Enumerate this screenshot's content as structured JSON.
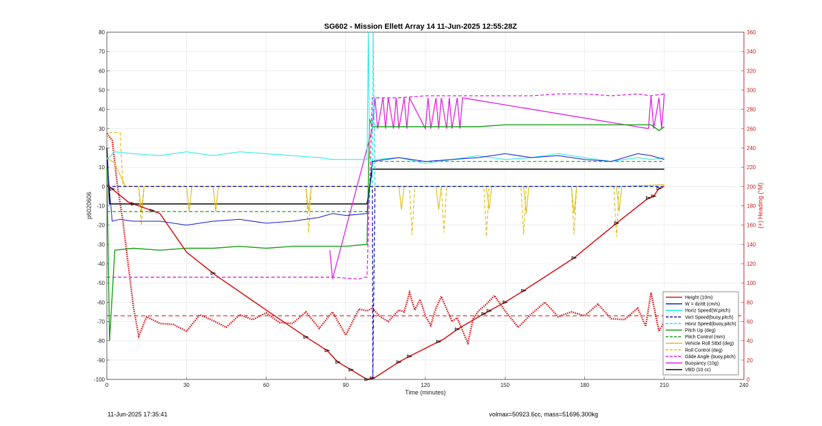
{
  "chart_data": {
    "type": "line",
    "title": "SG602 - Mission Ellett Array 14 11-Jun-2025 12:55:28Z",
    "xlabel": "Time (minutes)",
    "ylabel_left": "p6020606",
    "ylabel_right": "(+) Heading (°M)",
    "xlim": [
      0,
      240
    ],
    "ylim_left": [
      -100,
      80
    ],
    "ylim_right": [
      0,
      360
    ],
    "x_ticks": [
      0,
      30,
      60,
      90,
      120,
      150,
      180,
      210,
      240
    ],
    "y_ticks_left": [
      80,
      70,
      60,
      50,
      40,
      30,
      20,
      10,
      0,
      -10,
      -20,
      -30,
      -40,
      -50,
      -60,
      -70,
      -80,
      -90,
      -100
    ],
    "y_ticks_right": [
      360,
      340,
      320,
      300,
      280,
      260,
      240,
      220,
      200,
      180,
      160,
      140,
      120,
      100,
      80,
      60,
      40,
      20,
      0
    ],
    "grid": true,
    "legend_position": "bottom-right",
    "colors": {
      "red": "#d7191c",
      "blue": "#1515c8",
      "cyan": "#19e6e6",
      "green": "#18a018",
      "yellow": "#e0c020",
      "magenta": "#e01ee0",
      "black": "#000000"
    },
    "series": [
      {
        "name": "Height (10m)",
        "color": "#d7191c",
        "style": "solid",
        "width": 1.6,
        "x": [
          0,
          8,
          20,
          30,
          41,
          60,
          75,
          83,
          87,
          92,
          98,
          101,
          110,
          114,
          127,
          132,
          142,
          150,
          157,
          176,
          192,
          204,
          206,
          208,
          210
        ],
        "y": [
          1,
          -8,
          -14,
          -34,
          -46,
          -64,
          -78,
          -85,
          -91,
          -95,
          -100,
          -99,
          -91,
          -88,
          -79,
          -74,
          -66,
          -60,
          -54,
          -37,
          -19,
          -6,
          -5,
          -1,
          0
        ]
      },
      {
        "name": "W = dz/dt (cm/s)",
        "color": "#1515c8",
        "style": "solid",
        "width": 1,
        "x": [
          0,
          2,
          5,
          10,
          20,
          30,
          40,
          50,
          60,
          70,
          80,
          85,
          90,
          98,
          100,
          110,
          120,
          130,
          140,
          150,
          160,
          170,
          180,
          190,
          200,
          205,
          210
        ],
        "y": [
          14,
          -18,
          -17,
          -18,
          -18,
          -20,
          -18,
          -17,
          -19,
          -18,
          -16,
          -14,
          -15,
          -14,
          13,
          15,
          13,
          14,
          15,
          17,
          15,
          16,
          14,
          13,
          17,
          16,
          14
        ]
      },
      {
        "name": "Horiz Speed(W,pitch)",
        "color": "#19e6e6",
        "style": "solid",
        "width": 1,
        "x": [
          0,
          3,
          10,
          20,
          30,
          40,
          50,
          60,
          70,
          80,
          85,
          90,
          98,
          98.5,
          99,
          100,
          101,
          110,
          120,
          130,
          140,
          150,
          160,
          170,
          180,
          190,
          200,
          205,
          210
        ],
        "y": [
          14,
          18,
          17,
          16,
          18,
          16,
          18,
          17,
          16,
          15,
          14,
          14,
          14,
          80,
          15,
          12,
          14,
          15,
          12,
          14,
          16,
          14,
          15,
          17,
          15,
          13,
          15,
          14,
          15
        ]
      },
      {
        "name": "Vert Speed(buoy,pitch)",
        "color": "#1515c8",
        "style": "dashed",
        "width": 1.3,
        "x": [
          0,
          1,
          100,
          100.2,
          101,
          210
        ],
        "y": [
          0,
          0,
          0,
          -100,
          0,
          0
        ]
      },
      {
        "name": "Horiz Speed(buoy,pitch)",
        "color": "#19e6e6",
        "style": "dashed",
        "width": 1.3,
        "x": [
          0,
          1,
          100,
          100.3,
          101,
          210
        ],
        "y": [
          0,
          0,
          0,
          80,
          0,
          0
        ]
      },
      {
        "name": "Pitch Up (deg)",
        "color": "#18a018",
        "style": "solid",
        "width": 1.4,
        "x": [
          0,
          1,
          3,
          10,
          20,
          30,
          40,
          50,
          60,
          70,
          80,
          90,
          98,
          99,
          100,
          110,
          120,
          130,
          140,
          150,
          160,
          170,
          180,
          190,
          200,
          205,
          208,
          210
        ],
        "y": [
          10,
          -80,
          -33,
          -32,
          -33,
          -32,
          -32,
          -31,
          -32,
          -31,
          -31,
          -31,
          -30,
          35,
          31,
          31,
          31,
          31,
          31,
          32,
          32,
          32,
          32,
          32,
          32,
          32,
          29,
          31
        ]
      },
      {
        "name": "Pitch Control (mm)",
        "color": "#18a018",
        "style": "dashed",
        "width": 1.2,
        "x": [
          0,
          2,
          98,
          100,
          210
        ],
        "y": [
          -13,
          -13,
          -13,
          13,
          13
        ]
      },
      {
        "name": "Vehicle Roll Stbd (deg)",
        "color": "#e0c020",
        "style": "solid",
        "width": 1.2,
        "x": [
          0,
          3,
          7,
          12,
          13,
          14,
          30,
          31,
          32,
          40,
          41,
          42,
          75,
          76,
          77,
          98,
          100,
          110,
          111,
          112,
          124,
          125,
          126,
          143,
          144,
          145,
          157,
          158,
          159,
          175,
          176,
          177,
          192,
          193,
          194,
          210
        ],
        "y": [
          15,
          12,
          0,
          0,
          -13,
          0,
          0,
          -13,
          0,
          0,
          -13,
          0,
          0,
          -13,
          0,
          0,
          0,
          0,
          -12,
          0,
          0,
          -12,
          0,
          0,
          -12,
          0,
          0,
          -14,
          0,
          0,
          -14,
          0,
          0,
          -13,
          0,
          1
        ]
      },
      {
        "name": "Roll Control (deg)",
        "color": "#e0c020",
        "style": "dashed",
        "width": 1.2,
        "x": [
          0,
          1,
          5,
          6,
          12,
          13,
          14,
          75,
          76,
          77,
          98,
          100,
          114,
          115,
          116,
          126,
          127,
          128,
          142,
          143,
          144,
          156,
          157,
          158,
          175,
          176,
          177,
          191,
          192,
          193,
          210
        ],
        "y": [
          25,
          28,
          28,
          0,
          0,
          -20,
          0,
          0,
          -24,
          0,
          0,
          0,
          0,
          -25,
          0,
          0,
          -24,
          0,
          0,
          -26,
          0,
          0,
          -25,
          0,
          0,
          -25,
          0,
          0,
          -26,
          0,
          0
        ]
      },
      {
        "name": "Glide Angle (buoy,pitch)",
        "color": "#e01ee0",
        "style": "dashed",
        "width": 1.3,
        "x": [
          0,
          5,
          20,
          40,
          60,
          80,
          85,
          95,
          97,
          98,
          100,
          102,
          110,
          120,
          140,
          160,
          170,
          180,
          190,
          200,
          205,
          210
        ],
        "y": [
          -47,
          -47,
          -47,
          -47,
          -47,
          -47,
          -47,
          -48,
          -47,
          -47,
          46,
          46,
          46,
          47,
          47,
          47,
          48,
          48,
          47,
          48,
          47,
          48
        ]
      },
      {
        "name": "Buoyancy (10g)",
        "color": "#e01ee0",
        "style": "solid",
        "width": 1.3,
        "x": [
          84,
          85,
          100,
          101,
          102,
          104,
          105,
          106,
          108,
          109,
          110,
          112,
          113,
          114,
          120,
          121,
          122,
          124,
          125,
          126,
          128,
          129,
          130,
          132,
          133,
          134,
          204,
          205,
          206,
          208,
          209,
          210
        ],
        "y": [
          -33,
          -48,
          30,
          46,
          30,
          46,
          30,
          46,
          30,
          46,
          30,
          46,
          30,
          46,
          30,
          46,
          30,
          46,
          30,
          46,
          30,
          46,
          30,
          46,
          30,
          46,
          30,
          47,
          30,
          46,
          30,
          48
        ]
      },
      {
        "name": "VBD (10 cc)",
        "color": "#000000",
        "style": "solid",
        "width": 1.5,
        "x": [
          0,
          1,
          98,
          100,
          210
        ],
        "y": [
          20,
          -9,
          -9,
          9,
          9
        ]
      }
    ],
    "heading_series": {
      "name": "(+) Heading (°M)",
      "color": "#d7191c",
      "style": "dotted",
      "axis": "right",
      "x": [
        0,
        2,
        4,
        6,
        8,
        10,
        12,
        15,
        20,
        25,
        30,
        35,
        40,
        45,
        50,
        55,
        60,
        65,
        70,
        75,
        80,
        85,
        90,
        95,
        98,
        100,
        103,
        106,
        110,
        112,
        114,
        116,
        118,
        120,
        122,
        124,
        126,
        130,
        132,
        135,
        136,
        138,
        140,
        143,
        146,
        150,
        155,
        160,
        165,
        170,
        175,
        180,
        185,
        190,
        195,
        200,
        203,
        205,
        208,
        210
      ],
      "y": [
        255,
        248,
        200,
        165,
        120,
        75,
        45,
        65,
        58,
        57,
        50,
        67,
        61,
        54,
        67,
        62,
        69,
        59,
        58,
        70,
        53,
        70,
        46,
        73,
        71,
        74,
        65,
        60,
        72,
        70,
        90,
        72,
        83,
        66,
        56,
        74,
        86,
        60,
        64,
        44,
        38,
        63,
        71,
        78,
        87,
        71,
        54,
        68,
        80,
        65,
        70,
        66,
        78,
        63,
        62,
        74,
        55,
        90,
        50,
        60
      ]
    },
    "heading_mean": {
      "value": 66,
      "color": "#d7191c",
      "style": "dashed"
    },
    "legend_entries": [
      {
        "label": "Height (10m)",
        "color": "#d7191c",
        "style": "solid"
      },
      {
        "label": "W = dz/dt (cm/s)",
        "color": "#1515c8",
        "style": "solid"
      },
      {
        "label": "Horiz Speed(W,pitch)",
        "color": "#19e6e6",
        "style": "solid"
      },
      {
        "label": "Vert Speed(buoy,pitch)",
        "color": "#1515c8",
        "style": "dashed"
      },
      {
        "label": "Horiz Speed(buoy,pitch)",
        "color": "#19e6e6",
        "style": "dashed"
      },
      {
        "label": "Pitch Up (deg)",
        "color": "#18a018",
        "style": "solid"
      },
      {
        "label": "Pitch Control (mm)",
        "color": "#18a018",
        "style": "dashed"
      },
      {
        "label": "Vehicle Roll Stbd (deg)",
        "color": "#e0c020",
        "style": "solid"
      },
      {
        "label": "Roll Control (deg)",
        "color": "#e0c020",
        "style": "dashed"
      },
      {
        "label": "Glide Angle (buoy,pitch)",
        "color": "#e01ee0",
        "style": "dashed"
      },
      {
        "label": "Buoyancy (10g)",
        "color": "#e01ee0",
        "style": "solid"
      },
      {
        "label": "VBD (10 cc)",
        "color": "#000000",
        "style": "solid"
      }
    ],
    "height_markers_x": [
      2,
      10,
      17,
      40,
      75,
      83,
      87,
      92,
      98,
      100,
      110,
      114,
      125,
      132,
      142,
      144,
      150,
      157,
      176,
      192,
      204,
      206,
      208
    ]
  },
  "footer": {
    "timestamp": "11-Jun-2025 17:35:41",
    "info": "volmax=50923.6cc, mass=51696.300kg"
  }
}
